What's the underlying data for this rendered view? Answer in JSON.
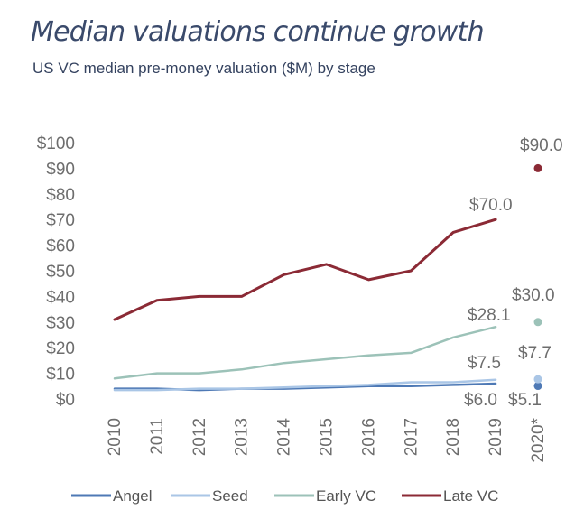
{
  "header": {
    "title": "Median valuations continue growth",
    "subtitle": "US VC median pre-money valuation ($M) by stage"
  },
  "chart_data": {
    "type": "line",
    "categories": [
      "2010",
      "2011",
      "2012",
      "2013",
      "2014",
      "2015",
      "2016",
      "2017",
      "2018",
      "2019",
      "2020*"
    ],
    "y_ticks": [
      "$0",
      "$10",
      "$20",
      "$30",
      "$40",
      "$50",
      "$60",
      "$70",
      "$80",
      "$90",
      "$100"
    ],
    "ylim": [
      0,
      100
    ],
    "grid": false,
    "legend_position": "bottom",
    "series": [
      {
        "name": "Angel",
        "color": "#4e79b5",
        "values": [
          4.0,
          4.0,
          3.5,
          4.0,
          4.0,
          4.5,
          5.0,
          5.0,
          5.5,
          6.0,
          5.1
        ]
      },
      {
        "name": "Seed",
        "color": "#aac6e6",
        "values": [
          3.5,
          3.5,
          4.0,
          4.0,
          4.5,
          5.0,
          5.5,
          6.5,
          6.5,
          7.5,
          7.7
        ]
      },
      {
        "name": "Early VC",
        "color": "#9cc2b8",
        "values": [
          8.0,
          10.0,
          10.0,
          11.5,
          14.0,
          15.5,
          17.0,
          18.0,
          24.0,
          28.1,
          30.0
        ]
      },
      {
        "name": "Late VC",
        "color": "#8b2a35",
        "values": [
          31.0,
          38.5,
          40.0,
          40.0,
          48.5,
          52.5,
          46.5,
          50.0,
          65.0,
          70.0,
          90.0
        ]
      }
    ],
    "annotations": [
      {
        "text": "$90.0",
        "series": "Late VC",
        "category": "2020*"
      },
      {
        "text": "$70.0",
        "series": "Late VC",
        "category": "2019"
      },
      {
        "text": "$30.0",
        "series": "Early VC",
        "category": "2020*"
      },
      {
        "text": "$28.1",
        "series": "Early VC",
        "category": "2019"
      },
      {
        "text": "$7.7",
        "series": "Seed",
        "category": "2020*"
      },
      {
        "text": "$7.5",
        "series": "Seed",
        "category": "2019"
      },
      {
        "text": "$6.0",
        "series": "Angel",
        "category": "2019"
      },
      {
        "text": "$5.1",
        "series": "Angel",
        "category": "2020*"
      }
    ]
  }
}
